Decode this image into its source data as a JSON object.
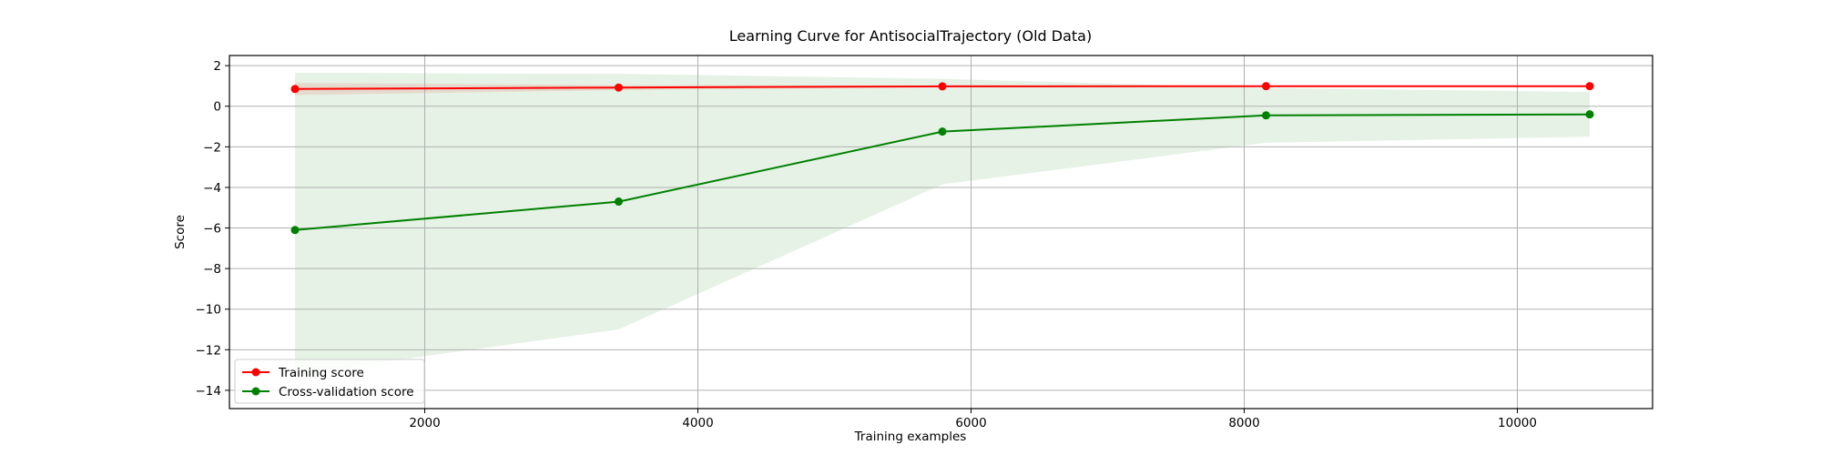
{
  "chart_data": {
    "type": "line",
    "title": "Learning Curve for AntisocialTrajectory (Old Data)",
    "xlabel": "Training examples",
    "ylabel": "Score",
    "xlim": [
      570,
      10990
    ],
    "ylim": [
      -14.9,
      2.5
    ],
    "x_ticks": [
      2000,
      4000,
      6000,
      8000,
      10000
    ],
    "y_ticks": [
      2,
      0,
      -2,
      -4,
      -6,
      -8,
      -10,
      -12,
      -14
    ],
    "grid": true,
    "legend_position": "lower-left",
    "x": [
      1050,
      3420,
      5790,
      8160,
      10530
    ],
    "series": [
      {
        "name": "Training score",
        "color": "#ff0000",
        "marker": "circle",
        "values": [
          0.85,
          0.92,
          0.98,
          0.99,
          0.99
        ],
        "band_lower": [
          0.55,
          0.8,
          0.95,
          0.97,
          0.98
        ],
        "band_upper": [
          1.15,
          1.04,
          1.01,
          1.01,
          1.0
        ]
      },
      {
        "name": "Cross-validation score",
        "color": "#008000",
        "marker": "circle",
        "values": [
          -6.1,
          -4.7,
          -1.25,
          -0.45,
          -0.4
        ],
        "band_lower": [
          -13.2,
          -11.0,
          -3.85,
          -1.8,
          -1.5
        ],
        "band_upper": [
          1.65,
          1.6,
          1.35,
          0.9,
          0.7
        ]
      }
    ],
    "band_color": "#008000",
    "band_opacity": 0.1
  }
}
